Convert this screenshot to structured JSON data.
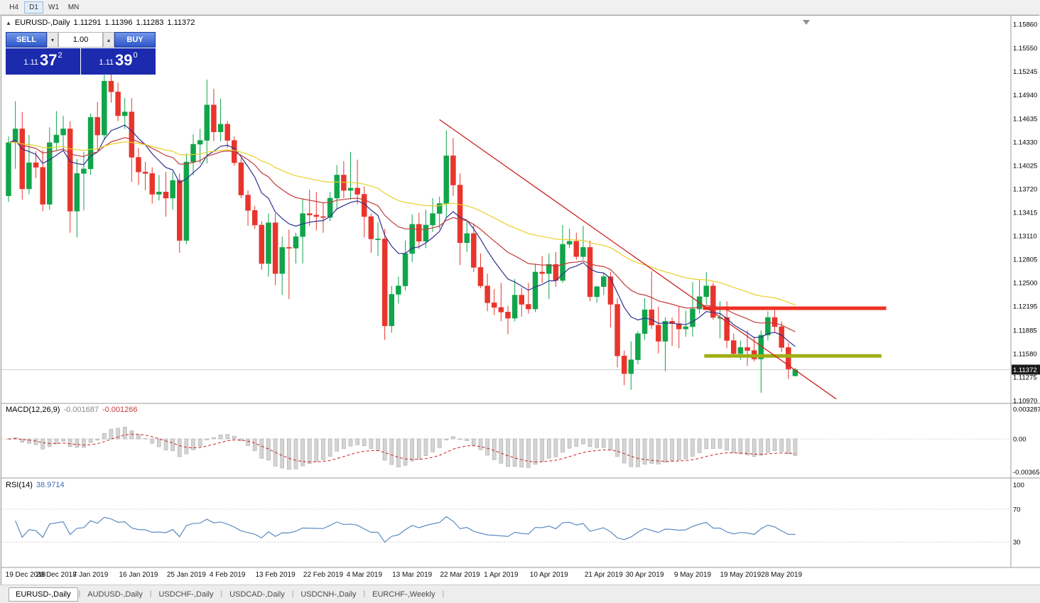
{
  "toolbar": {
    "timeframes": [
      {
        "label": "H4",
        "active": false
      },
      {
        "label": "D1",
        "active": true
      },
      {
        "label": "W1",
        "active": false
      },
      {
        "label": "MN",
        "active": false
      }
    ]
  },
  "icons": {
    "collapse_arrow": "▲",
    "volume_up": "▴",
    "volume_down": "▾",
    "scroll_marker": "▼"
  },
  "chart_header": {
    "symbol": "EURUSD-,Daily",
    "open": "1.11291",
    "high": "1.11396",
    "low": "1.11283",
    "close": "1.11372"
  },
  "trade_panel": {
    "sell_label": "SELL",
    "buy_label": "BUY",
    "volume": "1.00",
    "sell_price": {
      "prefix": "1.11",
      "big": "37",
      "sup": "2"
    },
    "buy_price": {
      "prefix": "1.11",
      "big": "39",
      "sup": "0"
    }
  },
  "price_axis": {
    "labels": [
      "1.15860",
      "1.15550",
      "1.15245",
      "1.14940",
      "1.14635",
      "1.14330",
      "1.14025",
      "1.13720",
      "1.13415",
      "1.13110",
      "1.12805",
      "1.12500",
      "1.12195",
      "1.11885",
      "1.11580",
      "1.11275",
      "1.10970"
    ],
    "current": "1.11372"
  },
  "macd": {
    "name": "MACD(12,26,9)",
    "value_main": "-0.001687",
    "value_signal": "-0.001266",
    "axis": [
      "0.003287",
      "0.00",
      "-0.003659"
    ]
  },
  "rsi": {
    "name": "RSI(14)",
    "value": "38.9714",
    "axis": [
      "100",
      "70",
      "30"
    ]
  },
  "date_axis": [
    [
      "19 Dec 2018",
      0
    ],
    [
      "28 Dec 2018",
      7
    ],
    [
      "7 Jan 2019",
      12
    ],
    [
      "16 Jan 2019",
      19
    ],
    [
      "25 Jan 2019",
      26
    ],
    [
      "4 Feb 2019",
      32
    ],
    [
      "13 Feb 2019",
      39
    ],
    [
      "22 Feb 2019",
      46
    ],
    [
      "4 Mar 2019",
      52
    ],
    [
      "13 Mar 2019",
      59
    ],
    [
      "22 Mar 2019",
      66
    ],
    [
      "1 Apr 2019",
      72
    ],
    [
      "10 Apr 2019",
      79
    ],
    [
      "21 Apr 2019",
      87
    ],
    [
      "30 Apr 2019",
      93
    ],
    [
      "9 May 2019",
      100
    ],
    [
      "19 May 2019",
      107
    ],
    [
      "28 May 2019",
      113
    ]
  ],
  "tabs": [
    {
      "label": "EURUSD-,Daily",
      "active": true
    },
    {
      "label": "AUDUSD-,Daily",
      "active": false
    },
    {
      "label": "USDCHF-,Daily",
      "active": false
    },
    {
      "label": "USDCAD-,Daily",
      "active": false
    },
    {
      "label": "USDCNH-,Daily",
      "active": false
    },
    {
      "label": "EURCHF-,Weekly",
      "active": false
    }
  ],
  "chart_data": {
    "type": "candlestick",
    "symbol": "EURUSD-",
    "timeframe": "Daily",
    "ylim": [
      1.1097,
      1.1586
    ],
    "colors": {
      "up": "#10a54a",
      "down": "#e8352c",
      "ma_fast": "#2e3192",
      "ma_mid": "#c23b3b",
      "ma_slow": "#e7d125",
      "macd_hist": "#d4d4d4",
      "macd_signal": "#cc2222",
      "rsi_line": "#4f81bd"
    },
    "dates": [
      "2018-12-19",
      "2018-12-20",
      "2018-12-21",
      "2018-12-24",
      "2018-12-25",
      "2018-12-26",
      "2018-12-27",
      "2018-12-28",
      "2018-12-31",
      "2019-01-02",
      "2019-01-03",
      "2019-01-04",
      "2019-01-07",
      "2019-01-08",
      "2019-01-09",
      "2019-01-10",
      "2019-01-11",
      "2019-01-14",
      "2019-01-15",
      "2019-01-16",
      "2019-01-17",
      "2019-01-18",
      "2019-01-21",
      "2019-01-22",
      "2019-01-23",
      "2019-01-24",
      "2019-01-25",
      "2019-01-28",
      "2019-01-29",
      "2019-01-30",
      "2019-01-31",
      "2019-02-01",
      "2019-02-04",
      "2019-02-05",
      "2019-02-06",
      "2019-02-07",
      "2019-02-08",
      "2019-02-11",
      "2019-02-12",
      "2019-02-13",
      "2019-02-14",
      "2019-02-15",
      "2019-02-18",
      "2019-02-19",
      "2019-02-20",
      "2019-02-21",
      "2019-02-22",
      "2019-02-25",
      "2019-02-26",
      "2019-02-27",
      "2019-02-28",
      "2019-03-01",
      "2019-03-04",
      "2019-03-05",
      "2019-03-06",
      "2019-03-07",
      "2019-03-08",
      "2019-03-11",
      "2019-03-12",
      "2019-03-13",
      "2019-03-14",
      "2019-03-15",
      "2019-03-18",
      "2019-03-19",
      "2019-03-20",
      "2019-03-21",
      "2019-03-22",
      "2019-03-25",
      "2019-03-26",
      "2019-03-27",
      "2019-03-28",
      "2019-03-29",
      "2019-04-01",
      "2019-04-02",
      "2019-04-03",
      "2019-04-04",
      "2019-04-05",
      "2019-04-08",
      "2019-04-09",
      "2019-04-10",
      "2019-04-11",
      "2019-04-12",
      "2019-04-15",
      "2019-04-16",
      "2019-04-17",
      "2019-04-18",
      "2019-04-19",
      "2019-04-22",
      "2019-04-23",
      "2019-04-24",
      "2019-04-25",
      "2019-04-26",
      "2019-04-29",
      "2019-04-30",
      "2019-05-01",
      "2019-05-02",
      "2019-05-03",
      "2019-05-06",
      "2019-05-07",
      "2019-05-08",
      "2019-05-09",
      "2019-05-10",
      "2019-05-13",
      "2019-05-14",
      "2019-05-15",
      "2019-05-16",
      "2019-05-17",
      "2019-05-20",
      "2019-05-21",
      "2019-05-22",
      "2019-05-23",
      "2019-05-24",
      "2019-05-27",
      "2019-05-28",
      "2019-05-29",
      "2019-05-30"
    ],
    "candles": [
      [
        1.1363,
        1.144,
        1.1355,
        1.1432
      ],
      [
        1.1432,
        1.1486,
        1.1398,
        1.145
      ],
      [
        1.145,
        1.1472,
        1.1358,
        1.1372
      ],
      [
        1.1372,
        1.1442,
        1.1365,
        1.1406
      ],
      [
        1.1406,
        1.1421,
        1.1386,
        1.14
      ],
      [
        1.14,
        1.1422,
        1.1343,
        1.1352
      ],
      [
        1.1352,
        1.1452,
        1.1345,
        1.1432
      ],
      [
        1.1432,
        1.1473,
        1.1422,
        1.1442
      ],
      [
        1.1442,
        1.1467,
        1.1421,
        1.145
      ],
      [
        1.145,
        1.146,
        1.1315,
        1.1343
      ],
      [
        1.1343,
        1.1411,
        1.1309,
        1.1392
      ],
      [
        1.1392,
        1.142,
        1.1344,
        1.1398
      ],
      [
        1.1398,
        1.147,
        1.139,
        1.1465
      ],
      [
        1.1465,
        1.1485,
        1.1422,
        1.1442
      ],
      [
        1.1442,
        1.152,
        1.1435,
        1.1512
      ],
      [
        1.1512,
        1.1522,
        1.1484,
        1.1498
      ],
      [
        1.1498,
        1.151,
        1.146,
        1.1467
      ],
      [
        1.1467,
        1.149,
        1.145,
        1.1472
      ],
      [
        1.1472,
        1.149,
        1.1381,
        1.1413
      ],
      [
        1.1413,
        1.1425,
        1.1377,
        1.1394
      ],
      [
        1.1394,
        1.1407,
        1.137,
        1.1392
      ],
      [
        1.1392,
        1.14,
        1.1353,
        1.1365
      ],
      [
        1.1365,
        1.139,
        1.1357,
        1.1368
      ],
      [
        1.1368,
        1.1394,
        1.1336,
        1.136
      ],
      [
        1.136,
        1.1394,
        1.1345,
        1.1383
      ],
      [
        1.1383,
        1.1392,
        1.1289,
        1.1305
      ],
      [
        1.1305,
        1.1418,
        1.13,
        1.1407
      ],
      [
        1.1407,
        1.1443,
        1.139,
        1.143
      ],
      [
        1.143,
        1.145,
        1.1405,
        1.1435
      ],
      [
        1.1435,
        1.1514,
        1.1405,
        1.1481
      ],
      [
        1.1481,
        1.1502,
        1.1434,
        1.1446
      ],
      [
        1.1446,
        1.1489,
        1.1434,
        1.1456
      ],
      [
        1.1456,
        1.146,
        1.1425,
        1.1435
      ],
      [
        1.1435,
        1.144,
        1.1402,
        1.1406
      ],
      [
        1.1406,
        1.1412,
        1.136,
        1.1364
      ],
      [
        1.1364,
        1.137,
        1.1324,
        1.1344
      ],
      [
        1.1344,
        1.135,
        1.132,
        1.1325
      ],
      [
        1.1325,
        1.133,
        1.1267,
        1.1275
      ],
      [
        1.1275,
        1.134,
        1.1258,
        1.1328
      ],
      [
        1.1328,
        1.134,
        1.1247,
        1.1262
      ],
      [
        1.1262,
        1.131,
        1.1234,
        1.1296
      ],
      [
        1.1296,
        1.1319,
        1.1229,
        1.1295
      ],
      [
        1.1295,
        1.1315,
        1.1275,
        1.131
      ],
      [
        1.131,
        1.1359,
        1.1275,
        1.134
      ],
      [
        1.134,
        1.1371,
        1.1324,
        1.1338
      ],
      [
        1.1338,
        1.1368,
        1.1318,
        1.1336
      ],
      [
        1.1336,
        1.1354,
        1.1315,
        1.1335
      ],
      [
        1.1335,
        1.1368,
        1.133,
        1.136
      ],
      [
        1.136,
        1.1403,
        1.1345,
        1.139
      ],
      [
        1.139,
        1.1408,
        1.136,
        1.137
      ],
      [
        1.137,
        1.142,
        1.1358,
        1.1373
      ],
      [
        1.1373,
        1.141,
        1.1352,
        1.1365
      ],
      [
        1.1365,
        1.1375,
        1.1309,
        1.1336
      ],
      [
        1.1336,
        1.134,
        1.1289,
        1.1307
      ],
      [
        1.1307,
        1.1329,
        1.1285,
        1.1307
      ],
      [
        1.1307,
        1.132,
        1.1176,
        1.1194
      ],
      [
        1.1194,
        1.1246,
        1.1185,
        1.1235
      ],
      [
        1.1235,
        1.1258,
        1.1223,
        1.1246
      ],
      [
        1.1246,
        1.1305,
        1.124,
        1.1288
      ],
      [
        1.1288,
        1.1339,
        1.1277,
        1.1326
      ],
      [
        1.1326,
        1.1341,
        1.1294,
        1.1304
      ],
      [
        1.1304,
        1.1345,
        1.1295,
        1.1325
      ],
      [
        1.1325,
        1.136,
        1.1316,
        1.134
      ],
      [
        1.134,
        1.1362,
        1.132,
        1.1353
      ],
      [
        1.1353,
        1.1448,
        1.1335,
        1.1415
      ],
      [
        1.1415,
        1.1438,
        1.1363,
        1.1377
      ],
      [
        1.1377,
        1.1392,
        1.1273,
        1.1302
      ],
      [
        1.1302,
        1.133,
        1.129,
        1.1314
      ],
      [
        1.1314,
        1.1327,
        1.1264,
        1.127
      ],
      [
        1.127,
        1.1288,
        1.1243,
        1.1246
      ],
      [
        1.1246,
        1.1262,
        1.1213,
        1.1224
      ],
      [
        1.1224,
        1.1242,
        1.1208,
        1.1218
      ],
      [
        1.1218,
        1.125,
        1.12,
        1.1212
      ],
      [
        1.1212,
        1.122,
        1.1183,
        1.1204
      ],
      [
        1.1204,
        1.1255,
        1.12,
        1.1234
      ],
      [
        1.1234,
        1.1244,
        1.1206,
        1.1222
      ],
      [
        1.1222,
        1.125,
        1.121,
        1.1216
      ],
      [
        1.1216,
        1.1274,
        1.1212,
        1.1264
      ],
      [
        1.1264,
        1.1285,
        1.125,
        1.1262
      ],
      [
        1.1262,
        1.1288,
        1.1229,
        1.1274
      ],
      [
        1.1274,
        1.129,
        1.1245,
        1.1253
      ],
      [
        1.1253,
        1.1325,
        1.125,
        1.13
      ],
      [
        1.13,
        1.132,
        1.1295,
        1.1304
      ],
      [
        1.1304,
        1.1315,
        1.128,
        1.1284
      ],
      [
        1.1284,
        1.1324,
        1.128,
        1.1296
      ],
      [
        1.1296,
        1.1305,
        1.1226,
        1.1232
      ],
      [
        1.1232,
        1.1246,
        1.1224,
        1.1245
      ],
      [
        1.1245,
        1.1262,
        1.1234,
        1.1258
      ],
      [
        1.1258,
        1.1264,
        1.1192,
        1.1222
      ],
      [
        1.1222,
        1.123,
        1.114,
        1.1155
      ],
      [
        1.1155,
        1.1162,
        1.1117,
        1.1132
      ],
      [
        1.1132,
        1.1174,
        1.1111,
        1.115
      ],
      [
        1.115,
        1.1187,
        1.1144,
        1.1184
      ],
      [
        1.1184,
        1.123,
        1.1176,
        1.1215
      ],
      [
        1.1215,
        1.1265,
        1.119,
        1.1195
      ],
      [
        1.1195,
        1.1219,
        1.1158,
        1.1174
      ],
      [
        1.1174,
        1.1205,
        1.1135,
        1.12
      ],
      [
        1.12,
        1.1205,
        1.1168,
        1.1197
      ],
      [
        1.1197,
        1.122,
        1.1165,
        1.119
      ],
      [
        1.119,
        1.1214,
        1.118,
        1.1193
      ],
      [
        1.1193,
        1.1251,
        1.118,
        1.1216
      ],
      [
        1.1216,
        1.1254,
        1.121,
        1.1232
      ],
      [
        1.1232,
        1.1264,
        1.1222,
        1.1246
      ],
      [
        1.1246,
        1.125,
        1.1202,
        1.1205
      ],
      [
        1.1205,
        1.1226,
        1.1178,
        1.1205
      ],
      [
        1.1205,
        1.1226,
        1.1165,
        1.1175
      ],
      [
        1.1175,
        1.1184,
        1.1155,
        1.1158
      ],
      [
        1.1158,
        1.1175,
        1.115,
        1.1166
      ],
      [
        1.1166,
        1.1188,
        1.1142,
        1.1162
      ],
      [
        1.1162,
        1.118,
        1.1148,
        1.1151
      ],
      [
        1.1151,
        1.1188,
        1.1107,
        1.1182
      ],
      [
        1.1182,
        1.1213,
        1.1175,
        1.1205
      ],
      [
        1.1205,
        1.1215,
        1.1186,
        1.1193
      ],
      [
        1.1193,
        1.12,
        1.116,
        1.1166
      ],
      [
        1.1166,
        1.1172,
        1.1125,
        1.1138
      ],
      [
        1.11291,
        1.11396,
        1.11283,
        1.11372
      ]
    ],
    "overlays": [
      {
        "name": "ma-fast",
        "period": 10,
        "color_key": "ma_fast"
      },
      {
        "name": "ma-mid",
        "period": 24,
        "color_key": "ma_mid"
      },
      {
        "name": "ma-slow",
        "period": 52,
        "color_key": "ma_slow"
      }
    ],
    "objects": {
      "trendline": {
        "i1": 63,
        "p1": 1.1462,
        "i2": 121,
        "p2": 1.1099,
        "color": "#cc2020",
        "width": 1.3
      },
      "hlines": [
        {
          "price": 1.1217,
          "i1": 101.5,
          "i2": 128.3,
          "color": "#ee3125",
          "width": 5
        },
        {
          "price": 1.1155,
          "i1": 101.7,
          "i2": 127.6,
          "color": "#9fae14",
          "width": 5
        }
      ]
    },
    "indicators": [
      {
        "type": "MACD",
        "fast": 12,
        "slow": 26,
        "signal": 9
      },
      {
        "type": "RSI",
        "period": 14
      }
    ]
  }
}
